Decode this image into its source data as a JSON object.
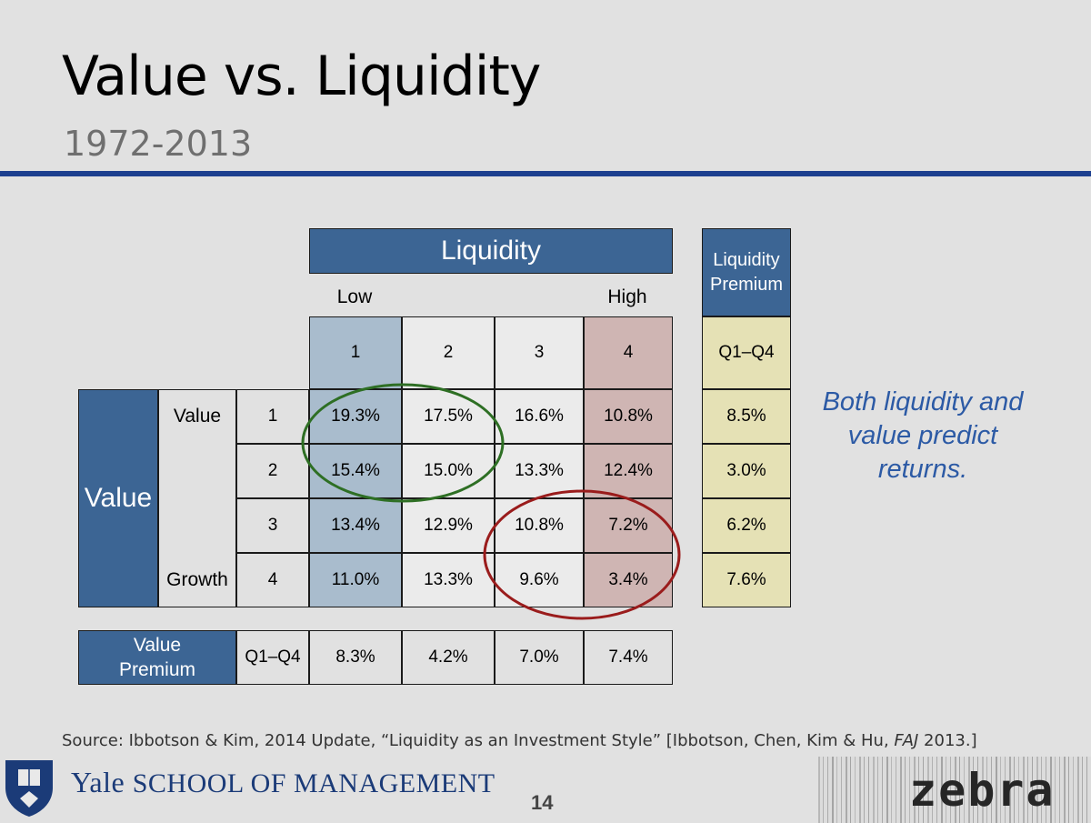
{
  "slide": {
    "title": "Value vs. Liquidity",
    "subtitle": "1972-2013",
    "note": "Both liquidity and value predict returns.",
    "source_pre": "Source: Ibbotson & Kim, 2014 Update, “Liquidity as an Investment Style” [Ibbotson, Chen, Kim & Hu, ",
    "source_italic": "FAJ",
    "source_post": " 2013.]",
    "logo": {
      "yale": "Yale",
      "school": "SCHOOL OF MANAGEMENT"
    },
    "page_number": "14",
    "zebra_logo": "zebra"
  },
  "table": {
    "liquidity_header": "Liquidity",
    "low_label": "Low",
    "high_label": "High",
    "liquidity_quartiles": [
      "1",
      "2",
      "3",
      "4"
    ],
    "value_header": "Value",
    "value_top_label": "Value",
    "value_bottom_label": "Growth",
    "value_quartiles": [
      "1",
      "2",
      "3",
      "4"
    ],
    "returns": [
      [
        "19.3%",
        "17.5%",
        "16.6%",
        "10.8%"
      ],
      [
        "15.4%",
        "15.0%",
        "13.3%",
        "12.4%"
      ],
      [
        "13.4%",
        "12.9%",
        "10.8%",
        "7.2%"
      ],
      [
        "11.0%",
        "13.3%",
        "9.6%",
        "3.4%"
      ]
    ],
    "liquidity_premium_header": "Liquidity Premium",
    "liquidity_premium_sub": "Q1–Q4",
    "liquidity_premium": [
      "8.5%",
      "3.0%",
      "6.2%",
      "7.6%"
    ],
    "value_premium_header": "Value Premium",
    "value_premium_sub": "Q1–Q4",
    "value_premium": [
      "8.3%",
      "4.2%",
      "7.0%",
      "7.4%"
    ]
  },
  "colors": {
    "header_blue": "#3c6594",
    "low_liquidity_col": "#a9bccd",
    "high_liquidity_col": "#cfb5b3",
    "premium_col": "#e5e1b5",
    "green_circle": "#2e6f24",
    "red_circle": "#9a1c1c",
    "note_text": "#2c5aa5"
  }
}
